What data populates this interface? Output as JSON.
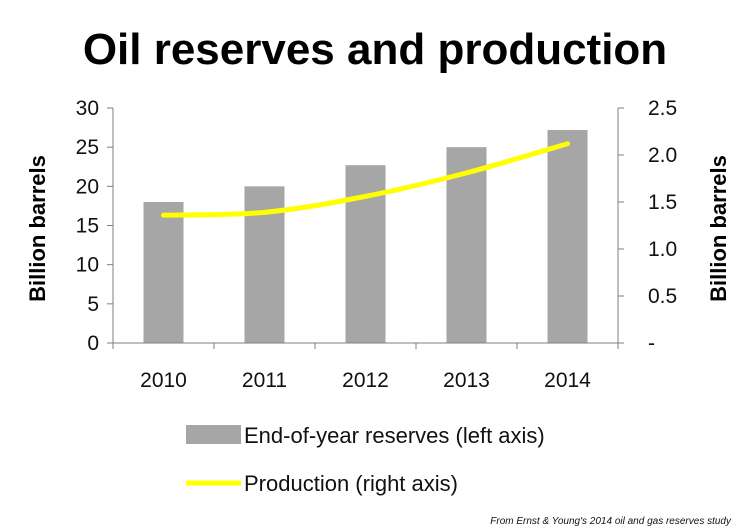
{
  "chart_data": {
    "type": "bar",
    "title": "Oil reserves and production",
    "categories": [
      "2010",
      "2011",
      "2012",
      "2013",
      "2014"
    ],
    "series": [
      {
        "name": "End-of-year reserves (left axis)",
        "kind": "bar",
        "axis": "left",
        "values": [
          18.0,
          20.0,
          22.7,
          25.0,
          27.2
        ]
      },
      {
        "name": "Production (right axis)",
        "kind": "line",
        "axis": "right",
        "values": [
          1.36,
          1.39,
          1.56,
          1.81,
          2.12
        ]
      }
    ],
    "left_axis": {
      "label": "Billion barrels",
      "ylim": [
        0,
        30
      ],
      "ticks": [
        0,
        5,
        10,
        15,
        20,
        25,
        30
      ],
      "tick_labels": [
        "0",
        "5",
        "10",
        "15",
        "20",
        "25",
        "30"
      ]
    },
    "right_axis": {
      "label": "Billion barrels",
      "ylim": [
        0,
        2.5
      ],
      "ticks": [
        0,
        0.5,
        1.0,
        1.5,
        2.0,
        2.5
      ],
      "tick_labels": [
        "-",
        "0.5",
        "1.0",
        "1.5",
        "2.0",
        "2.5"
      ]
    },
    "legend_position": "bottom",
    "source": "From Ernst & Young's 2014 oil and gas reserves study",
    "colors": {
      "bar": "#a6a6a6",
      "line": "#ffff00",
      "axis": "#7f7f7f"
    }
  }
}
